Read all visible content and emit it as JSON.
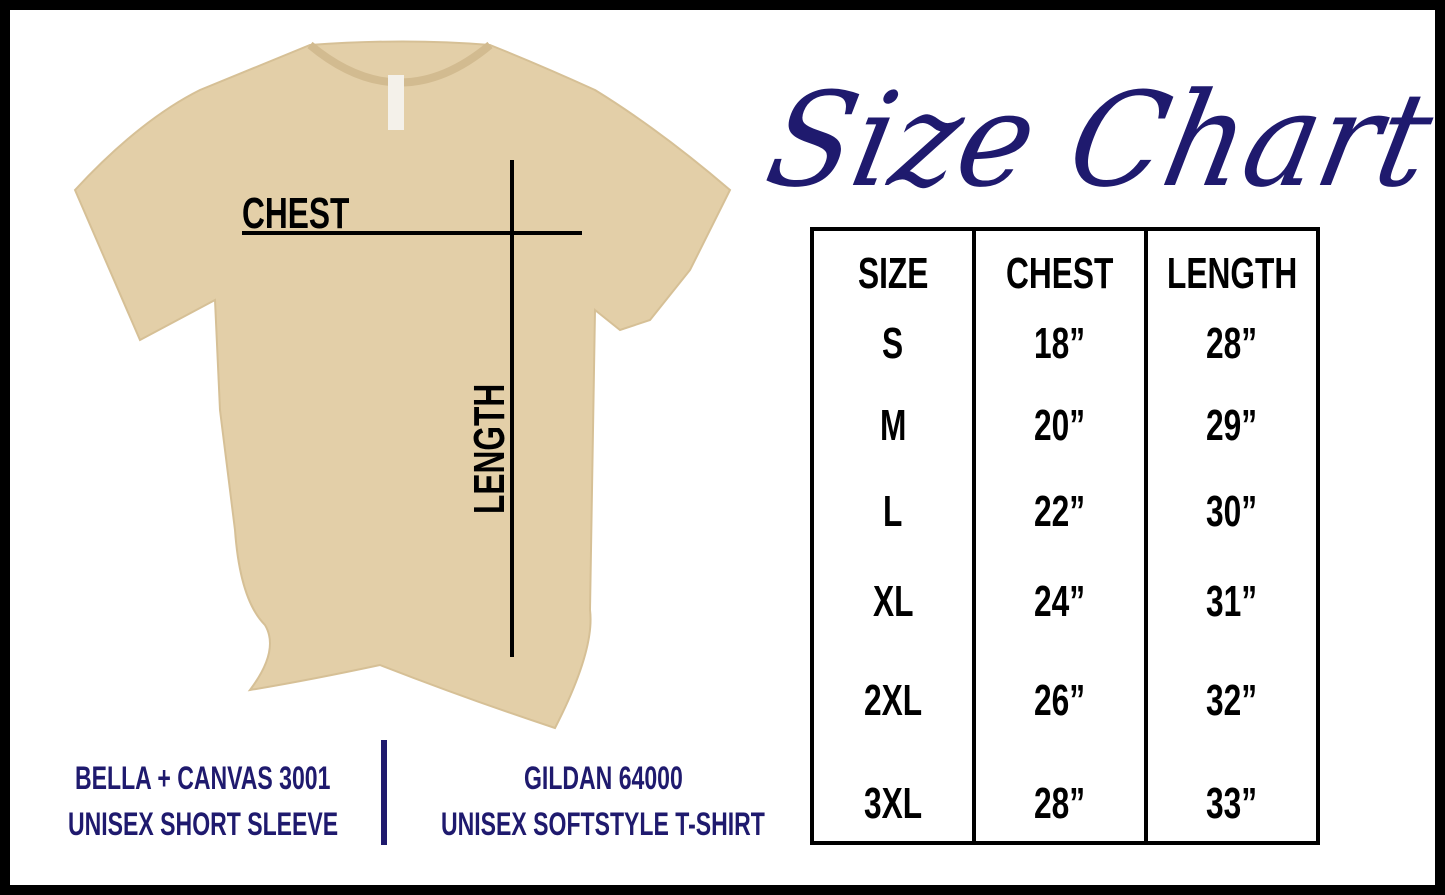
{
  "shirt": {
    "color": "#e3cfa8",
    "chest_label": "CHEST",
    "length_label": "LENGTH"
  },
  "title": "Size Chart",
  "colors": {
    "accent": "#1f1a6e",
    "border": "#000000"
  },
  "table": {
    "headers": [
      "SIZE",
      "CHEST",
      "LENGTH"
    ],
    "rows": [
      [
        "S",
        "18”",
        "28”"
      ],
      [
        "M",
        "20”",
        "29”"
      ],
      [
        "L",
        "22”",
        "30”"
      ],
      [
        "XL",
        "24”",
        "31”"
      ],
      [
        "2XL",
        "26”",
        "32”"
      ],
      [
        "3XL",
        "28”",
        "33”"
      ]
    ]
  },
  "brands": [
    {
      "line1": "BELLA + CANVAS 3001",
      "line2": "UNISEX SHORT SLEEVE"
    },
    {
      "line1": "GILDAN 64000",
      "line2": "UNISEX SOFTSTYLE T-SHIRT"
    }
  ]
}
